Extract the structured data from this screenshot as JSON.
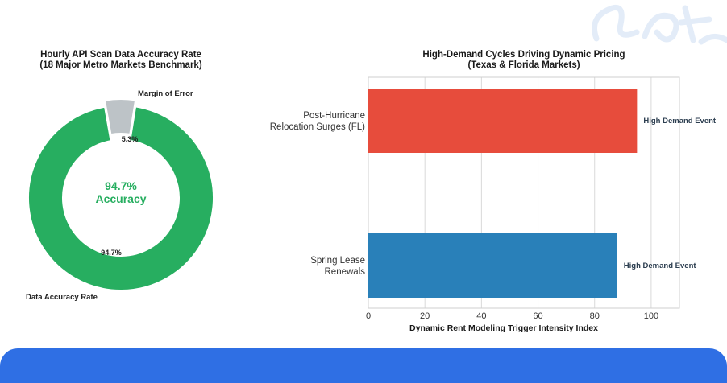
{
  "colors": {
    "accuracy": "#27ae60",
    "margin": "#bdc3c7",
    "hurricane_bar": "#e74c3c",
    "spring_bar": "#2980b9",
    "banner": "#2f6fe4"
  },
  "chart_data": [
    {
      "type": "pie",
      "style": "donut",
      "title": "Hourly API Scan Data Accuracy Rate\n(18 Major Metro Markets Benchmark)",
      "slices": [
        {
          "label": "Data Accuracy Rate",
          "value": 94.7,
          "pct_label": "94.7%",
          "color": "#27ae60"
        },
        {
          "label": "Margin of Error",
          "value": 5.3,
          "pct_label": "5.3%",
          "color": "#bdc3c7",
          "exploded": true
        }
      ],
      "center_value": "94.7%",
      "center_label": "Accuracy"
    },
    {
      "type": "bar",
      "orientation": "horizontal",
      "title": "High-Demand Cycles Driving Dynamic Pricing\n(Texas & Florida Markets)",
      "categories": [
        "Post-Hurricane\nRelocation Surges (FL)",
        "Spring Lease\nRenewals"
      ],
      "values": [
        95,
        88
      ],
      "colors": [
        "#e74c3c",
        "#2980b9"
      ],
      "annotations": [
        "High Demand Event",
        "High Demand Event"
      ],
      "xlabel": "Dynamic Rent Modeling Trigger Intensity Index",
      "xlim": [
        0,
        110
      ],
      "xticks": [
        0,
        20,
        40,
        60,
        80,
        100
      ],
      "grid": "vertical"
    }
  ]
}
